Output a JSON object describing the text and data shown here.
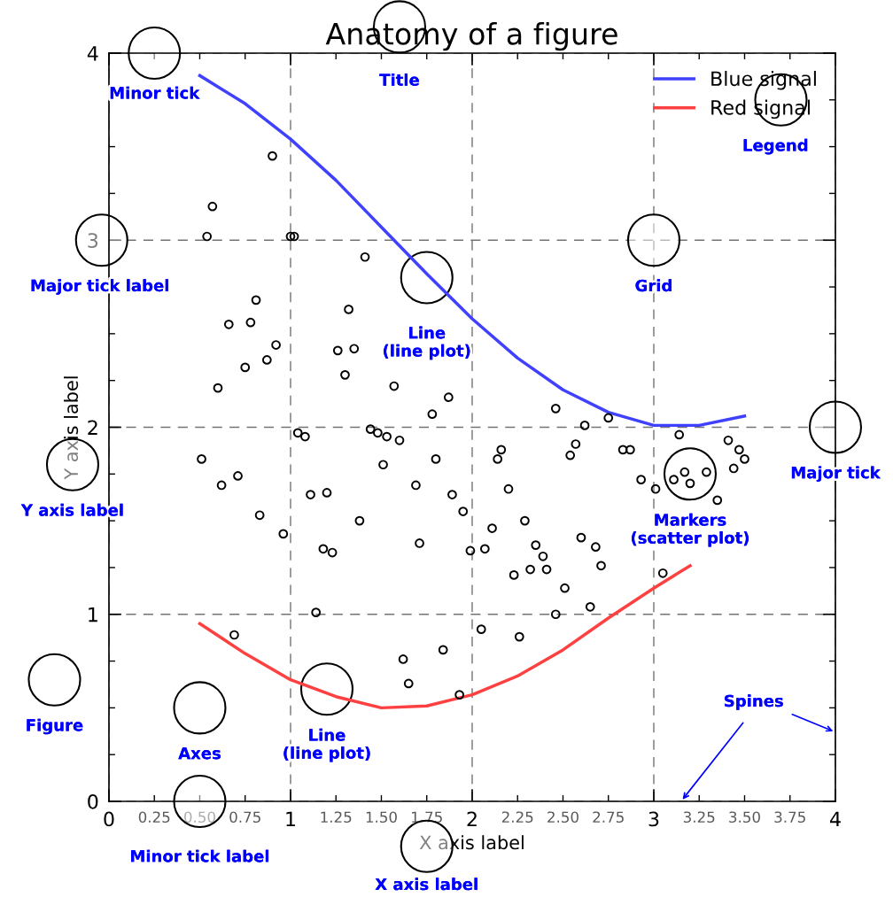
{
  "chart_data": {
    "type": "scatter",
    "title": "Anatomy of a figure",
    "xlabel": "X axis label",
    "ylabel": "Y axis label",
    "xlim": [
      0,
      4
    ],
    "ylim": [
      0,
      4
    ],
    "xticks": [
      0,
      0.25,
      {
        "value": 0.5,
        "label": "0.50"
      },
      0.75,
      1,
      1.25,
      {
        "value": 1.5,
        "label": "1.50"
      },
      1.75,
      2,
      2.25,
      {
        "value": 2.5,
        "label": "2.50"
      },
      2.75,
      3,
      3.25,
      {
        "value": 3.5,
        "label": "3.50"
      },
      3.75,
      4
    ],
    "yticks": [
      0,
      {
        "value": 0.25,
        "label": null
      },
      {
        "value": 0.5,
        "label": null
      },
      {
        "value": 0.75,
        "label": null
      },
      1,
      {
        "value": 1.25,
        "label": null
      },
      {
        "value": 1.5,
        "label": null
      },
      {
        "value": 1.75,
        "label": null
      },
      2,
      {
        "value": 2.25,
        "label": null
      },
      {
        "value": 2.5,
        "label": null
      },
      {
        "value": 2.75,
        "label": null
      },
      3,
      {
        "value": 3.25,
        "label": null
      },
      {
        "value": 3.5,
        "label": null
      },
      {
        "value": 3.75,
        "label": null
      },
      4
    ],
    "grid": true,
    "legend": "top right",
    "series": [
      {
        "name": "Blue signal",
        "type": "line",
        "color": "#4040ff",
        "x": [
          0.5,
          0.75,
          1.0,
          1.25,
          1.5,
          1.75,
          2.0,
          2.25,
          2.5,
          2.75,
          3.0,
          3.25,
          3.5
        ],
        "values": [
          3.88,
          3.73,
          3.54,
          3.32,
          3.07,
          2.82,
          2.58,
          2.37,
          2.2,
          2.08,
          2.01,
          2.01,
          2.06
        ]
      },
      {
        "name": "Red signal",
        "type": "line",
        "color": "#ff4040",
        "x": [
          0.5,
          0.75,
          1.0,
          1.25,
          1.5,
          1.75,
          2.0,
          2.25,
          2.5,
          2.75,
          3.0,
          3.2
        ],
        "values": [
          0.95,
          0.79,
          0.65,
          0.56,
          0.5,
          0.51,
          0.57,
          0.67,
          0.81,
          0.98,
          1.14,
          1.26
        ]
      },
      {
        "color": "#000000",
        "marker": "circle",
        "x": [
          0.9,
          0.57,
          0.54,
          1.0,
          1.02,
          1.41,
          0.81,
          1.32,
          0.66,
          0.78,
          0.92,
          1.26,
          1.35,
          0.87,
          0.75,
          1.3,
          0.6,
          1.57,
          1.87,
          1.78,
          1.04,
          1.08,
          1.44,
          1.48,
          1.53,
          1.6,
          1.51,
          0.51,
          0.62,
          0.71,
          1.11,
          1.2,
          1.69,
          1.8,
          1.89,
          1.95,
          0.83,
          1.38,
          0.96,
          1.71,
          1.18,
          1.23,
          1.99,
          2.07,
          2.11,
          2.16,
          2.14,
          2.2,
          2.29,
          2.35,
          2.39,
          2.32,
          2.41,
          2.23,
          2.51,
          1.14,
          2.46,
          2.65,
          2.05,
          2.26,
          0.69,
          1.84,
          1.62,
          1.65,
          1.93,
          2.46,
          2.62,
          2.57,
          2.54,
          2.75,
          2.83,
          2.87,
          2.93,
          3.01,
          3.14,
          3.11,
          3.17,
          3.2,
          3.29,
          3.35,
          3.41,
          3.47,
          3.5,
          3.44,
          2.6,
          2.68,
          2.71,
          3.05
        ],
        "values": [
          3.45,
          3.18,
          3.02,
          3.02,
          3.02,
          2.91,
          2.68,
          2.63,
          2.55,
          2.56,
          2.44,
          2.41,
          2.42,
          2.36,
          2.32,
          2.28,
          2.21,
          2.22,
          2.16,
          2.07,
          1.97,
          1.95,
          1.99,
          1.97,
          1.95,
          1.93,
          1.8,
          1.83,
          1.69,
          1.74,
          1.64,
          1.65,
          1.69,
          1.83,
          1.64,
          1.55,
          1.53,
          1.5,
          1.43,
          1.38,
          1.35,
          1.33,
          1.34,
          1.35,
          1.46,
          1.88,
          1.83,
          1.67,
          1.5,
          1.37,
          1.31,
          1.24,
          1.24,
          1.21,
          1.14,
          1.01,
          1.0,
          1.04,
          0.92,
          0.88,
          0.89,
          0.81,
          0.76,
          0.63,
          0.57,
          2.1,
          2.01,
          1.91,
          1.85,
          2.05,
          1.88,
          1.88,
          1.72,
          1.67,
          1.96,
          1.72,
          1.76,
          1.7,
          1.76,
          1.61,
          1.93,
          1.88,
          1.83,
          1.78,
          1.41,
          1.36,
          1.26,
          1.22
        ]
      }
    ],
    "annotations": [
      "Minor tick",
      "Title",
      "Legend",
      "Major tick label",
      "Grid",
      "Line\n(line plot)",
      "Y axis label",
      "Major tick",
      "Markers\n(scatter plot)",
      "Figure",
      "Axes",
      "Line\n(line plot)",
      "Spines",
      "Minor tick label",
      "X axis label"
    ]
  }
}
